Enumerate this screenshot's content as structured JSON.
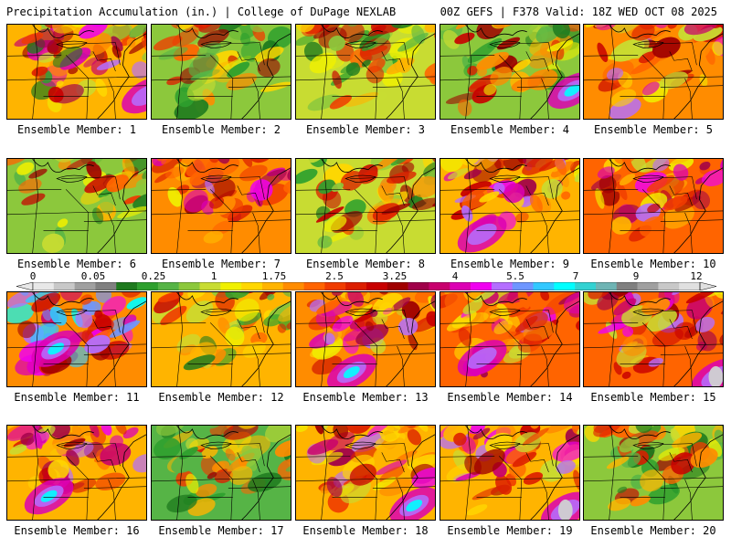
{
  "header": {
    "title": "Precipitation Accumulation (in.) | College of DuPage NEXLAB",
    "run_info": "00Z GEFS | F378 Valid: 18Z WED OCT 08 2025"
  },
  "colorbar": {
    "labels": [
      "0",
      "0.05",
      "0.25",
      "1",
      "1.75",
      "2.5",
      "3.25",
      "4",
      "5.5",
      "7",
      "9",
      "12"
    ],
    "colors": [
      "#e8e8e8",
      "#c8c8c8",
      "#a0a0a0",
      "#808080",
      "#1e7a1e",
      "#2ea02e",
      "#56b446",
      "#8cc83c",
      "#c8dc32",
      "#f0f000",
      "#ffd700",
      "#ffb400",
      "#ff8c00",
      "#ff6400",
      "#f03c00",
      "#dc1e00",
      "#c80000",
      "#a00000",
      "#a0004a",
      "#c8006e",
      "#dc00b4",
      "#f000f0",
      "#b46eff",
      "#6e96ff",
      "#32c8ff",
      "#00ffff",
      "#32d2d2",
      "#6eb4b4",
      "#808080",
      "#a0a0a0",
      "#c8c8c8",
      "#e0e0e0"
    ]
  },
  "members": [
    {
      "label": "Ensemble Member: 1"
    },
    {
      "label": "Ensemble Member: 2"
    },
    {
      "label": "Ensemble Member: 3"
    },
    {
      "label": "Ensemble Member: 4"
    },
    {
      "label": "Ensemble Member: 5"
    },
    {
      "label": "Ensemble Member: 6"
    },
    {
      "label": "Ensemble Member: 7"
    },
    {
      "label": "Ensemble Member: 8"
    },
    {
      "label": "Ensemble Member: 9"
    },
    {
      "label": "Ensemble Member: 10"
    },
    {
      "label": "Ensemble Member: 11"
    },
    {
      "label": "Ensemble Member: 12"
    },
    {
      "label": "Ensemble Member: 13"
    },
    {
      "label": "Ensemble Member: 14"
    },
    {
      "label": "Ensemble Member: 15"
    },
    {
      "label": "Ensemble Member: 16"
    },
    {
      "label": "Ensemble Member: 17"
    },
    {
      "label": "Ensemble Member: 18"
    },
    {
      "label": "Ensemble Member: 19"
    },
    {
      "label": "Ensemble Member: 20"
    }
  ]
}
